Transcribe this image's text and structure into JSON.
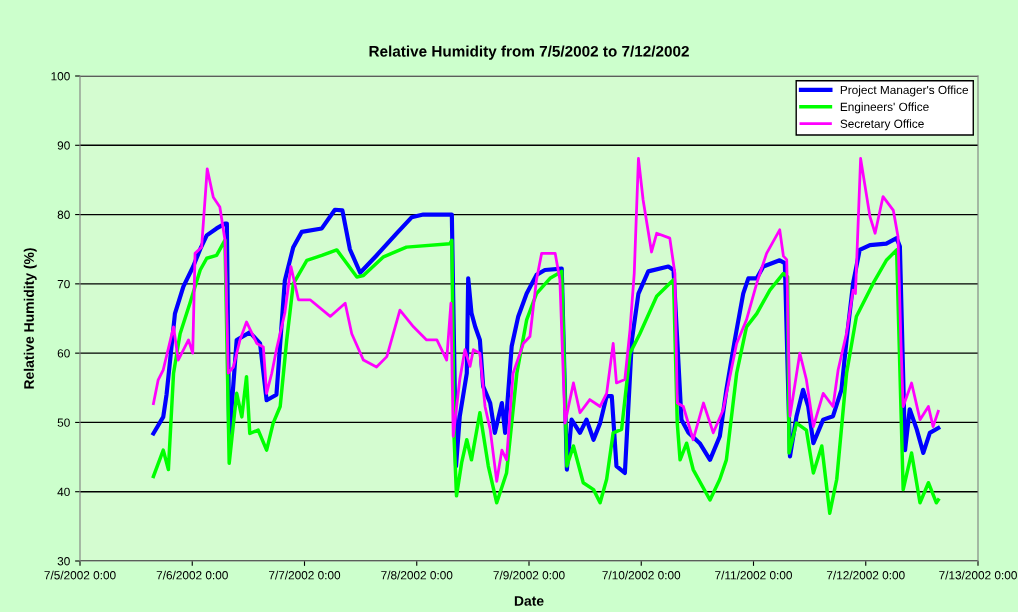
{
  "chart_data": {
    "type": "line",
    "title": "Relative Humidity from 7/5/2002 to 7/12/2002",
    "xlabel": "Date",
    "ylabel": "Relative Humidity (%)",
    "xlim": [
      "2002-07-05T00:00",
      "2002-07-13T00:00"
    ],
    "xticks": [
      {
        "value": "2002-07-05T00:00",
        "label": "7/5/2002 0:00"
      },
      {
        "value": "2002-07-06T00:00",
        "label": "7/6/2002 0:00"
      },
      {
        "value": "2002-07-07T00:00",
        "label": "7/7/2002 0:00"
      },
      {
        "value": "2002-07-08T00:00",
        "label": "7/8/2002 0:00"
      },
      {
        "value": "2002-07-09T00:00",
        "label": "7/9/2002 0:00"
      },
      {
        "value": "2002-07-10T00:00",
        "label": "7/10/2002 0:00"
      },
      {
        "value": "2002-07-11T00:00",
        "label": "7/11/2002 0:00"
      },
      {
        "value": "2002-07-12T00:00",
        "label": "7/12/2002 0:00"
      },
      {
        "value": "2002-07-13T00:00",
        "label": "7/13/2002 0:00"
      }
    ],
    "ylim": [
      30,
      100
    ],
    "yticks": [
      30,
      40,
      50,
      60,
      70,
      80,
      90,
      100
    ],
    "grid": "y",
    "legend": "top right",
    "marker": "none",
    "line_style": "solid",
    "series": [
      {
        "name": "Project Manager's Office",
        "color": "#0000ff",
        "x": [
          "2002-07-05T15:42",
          "2002-07-05T17:48",
          "2002-07-05T18:30",
          "2002-07-05T20:18",
          "2002-07-05T22:06",
          "2002-07-06T00:12",
          "2002-07-06T01:42",
          "2002-07-06T03:06",
          "2002-07-06T05:12",
          "2002-07-06T07:00",
          "2002-07-06T07:24",
          "2002-07-06T07:54",
          "2002-07-06T09:30",
          "2002-07-06T12:18",
          "2002-07-06T14:30",
          "2002-07-06T15:54",
          "2002-07-06T18:00",
          "2002-07-06T19:48",
          "2002-07-06T21:36",
          "2002-07-06T23:24",
          "2002-07-07T03:42",
          "2002-07-07T06:30",
          "2002-07-07T08:06",
          "2002-07-07T09:42",
          "2002-07-07T11:54",
          "2002-07-07T15:24",
          "2002-07-07T19:42",
          "2002-07-07T22:54",
          "2002-07-08T01:24",
          "2002-07-08T07:30",
          "2002-07-08T08:24",
          "2002-07-08T09:12",
          "2002-07-08T10:42",
          "2002-07-08T11:00",
          "2002-07-08T11:42",
          "2002-07-08T12:30",
          "2002-07-08T13:30",
          "2002-07-08T14:12",
          "2002-07-08T15:42",
          "2002-07-08T16:42",
          "2002-07-08T18:12",
          "2002-07-08T18:54",
          "2002-07-08T20:18",
          "2002-07-08T21:42",
          "2002-07-08T23:30",
          "2002-07-09T01:36",
          "2002-07-09T03:24",
          "2002-07-09T07:00",
          "2002-07-09T08:06",
          "2002-07-09T09:06",
          "2002-07-09T10:54",
          "2002-07-09T12:18",
          "2002-07-09T13:48",
          "2002-07-09T15:12",
          "2002-07-09T16:36",
          "2002-07-09T17:42",
          "2002-07-09T18:42",
          "2002-07-09T20:30",
          "2002-07-09T22:00",
          "2002-07-09T23:24",
          "2002-07-10T01:30",
          "2002-07-10T05:48",
          "2002-07-10T06:54",
          "2002-07-10T08:36",
          "2002-07-10T10:06",
          "2002-07-10T12:30",
          "2002-07-10T14:42",
          "2002-07-10T16:48",
          "2002-07-10T18:12",
          "2002-07-10T20:00",
          "2002-07-10T21:48",
          "2002-07-10T22:54",
          "2002-07-11T00:42",
          "2002-07-11T02:06",
          "2002-07-11T05:36",
          "2002-07-11T06:42",
          "2002-07-11T07:48",
          "2002-07-11T09:12",
          "2002-07-11T10:36",
          "2002-07-11T11:42",
          "2002-07-11T12:48",
          "2002-07-11T14:54",
          "2002-07-11T17:00",
          "2002-07-11T18:48",
          "2002-07-11T19:54",
          "2002-07-11T21:18",
          "2002-07-11T22:42",
          "2002-07-12T00:54",
          "2002-07-12T04:24",
          "2002-07-12T06:36",
          "2002-07-12T07:18",
          "2002-07-12T08:24",
          "2002-07-12T09:24",
          "2002-07-12T10:54",
          "2002-07-12T12:18",
          "2002-07-12T13:42",
          "2002-07-12T15:30"
        ],
        "values": [
          48.4,
          50.8,
          54,
          65.7,
          69.6,
          72.5,
          75,
          77,
          78,
          78.7,
          78.7,
          47.5,
          61.9,
          63,
          61.4,
          53.2,
          54,
          70.5,
          75.3,
          77.5,
          78,
          80.7,
          80.6,
          75,
          71.6,
          74.1,
          77.3,
          79.6,
          80,
          80,
          43.7,
          50.9,
          57.1,
          70.8,
          65.8,
          63.8,
          61.9,
          55.2,
          52.8,
          48.5,
          52.8,
          48.5,
          61,
          65.3,
          68.6,
          71.3,
          72,
          72.2,
          43.2,
          50.4,
          48.5,
          50.4,
          47.5,
          49.9,
          53.8,
          53.8,
          43.7,
          42.7,
          61.9,
          68.6,
          71.8,
          72.5,
          72,
          50.4,
          48.5,
          47,
          44.6,
          48,
          54.7,
          61.9,
          68.6,
          70.8,
          70.8,
          72.5,
          73.4,
          73,
          45.1,
          50.9,
          54.7,
          52.3,
          47,
          50.4,
          50.9,
          54.7,
          61.9,
          70.1,
          74.9,
          75.6,
          75.8,
          76.6,
          75.4,
          46,
          51.9,
          49,
          45.6,
          48.5,
          49.2
        ]
      },
      {
        "name": "Engineers' Office",
        "color": "#00ff00",
        "x": [
          "2002-07-05T15:42",
          "2002-07-05T17:48",
          "2002-07-05T18:54",
          "2002-07-05T20:00",
          "2002-07-05T21:24",
          "2002-07-05T23:30",
          "2002-07-06T01:42",
          "2002-07-06T03:06",
          "2002-07-06T05:12",
          "2002-07-06T07:00",
          "2002-07-06T07:54",
          "2002-07-06T09:30",
          "2002-07-06T10:36",
          "2002-07-06T11:36",
          "2002-07-06T12:18",
          "2002-07-06T14:06",
          "2002-07-06T15:54",
          "2002-07-06T17:18",
          "2002-07-06T18:48",
          "2002-07-06T20:12",
          "2002-07-06T21:36",
          "2002-07-07T00:30",
          "2002-07-07T03:42",
          "2002-07-07T06:54",
          "2002-07-07T11:12",
          "2002-07-07T12:36",
          "2002-07-07T16:54",
          "2002-07-07T21:48",
          "2002-07-08T07:06",
          "2002-07-08T07:30",
          "2002-07-08T08:00",
          "2002-07-08T08:30",
          "2002-07-08T09:36",
          "2002-07-08T10:42",
          "2002-07-08T11:42",
          "2002-07-08T13:30",
          "2002-07-08T15:18",
          "2002-07-08T17:06",
          "2002-07-08T19:12",
          "2002-07-08T21:24",
          "2002-07-08T23:30",
          "2002-07-09T01:36",
          "2002-07-09T04:30",
          "2002-07-09T07:00",
          "2002-07-09T08:06",
          "2002-07-09T09:30",
          "2002-07-09T11:36",
          "2002-07-09T13:48",
          "2002-07-09T15:12",
          "2002-07-09T16:36",
          "2002-07-09T18:00",
          "2002-07-09T19:48",
          "2002-07-09T21:36",
          "2002-07-09T23:42",
          "2002-07-10T03:18",
          "2002-07-10T06:54",
          "2002-07-10T07:42",
          "2002-07-10T08:18",
          "2002-07-10T09:42",
          "2002-07-10T11:06",
          "2002-07-10T14:42",
          "2002-07-10T16:48",
          "2002-07-10T18:12",
          "2002-07-10T20:24",
          "2002-07-10T22:30",
          "2002-07-11T00:42",
          "2002-07-11T03:30",
          "2002-07-11T06:24",
          "2002-07-11T07:18",
          "2002-07-11T07:36",
          "2002-07-11T09:12",
          "2002-07-11T11:18",
          "2002-07-11T12:48",
          "2002-07-11T14:36",
          "2002-07-11T16:18",
          "2002-07-11T17:48",
          "2002-07-11T19:54",
          "2002-07-11T22:00",
          "2002-07-12T01:36",
          "2002-07-12T04:24",
          "2002-07-12T06:36",
          "2002-07-12T08:00",
          "2002-07-12T09:48",
          "2002-07-12T11:36",
          "2002-07-12T13:24",
          "2002-07-12T15:06",
          "2002-07-12T15:30"
        ],
        "values": [
          42.2,
          46,
          43.2,
          57.1,
          62.8,
          67.2,
          72,
          73.7,
          74.1,
          76.3,
          44.1,
          54.2,
          50.8,
          56.6,
          48.4,
          48.9,
          46,
          49.9,
          52.3,
          61.9,
          70,
          73.4,
          74.1,
          74.9,
          71,
          71.2,
          73.9,
          75.3,
          75.8,
          76.3,
          47.5,
          39.4,
          44.2,
          47.5,
          44.6,
          51.4,
          43.7,
          38.4,
          42.7,
          57.1,
          64.8,
          68.6,
          70.8,
          71.8,
          43.7,
          46.6,
          41.3,
          40.3,
          38.4,
          41.8,
          48.5,
          49,
          60,
          62.8,
          68.2,
          70.6,
          49.9,
          44.6,
          47,
          43.2,
          38.8,
          41.8,
          44.6,
          57.1,
          63.8,
          65.7,
          69.1,
          71.5,
          71,
          45.6,
          49.9,
          48.9,
          42.7,
          46.6,
          36.9,
          41.8,
          57.1,
          65.3,
          70.1,
          73.4,
          74.9,
          40.3,
          45.6,
          38.4,
          41.3,
          38.4,
          38.8
        ]
      },
      {
        "name": "Secretary Office",
        "color": "#ff00ff",
        "x": [
          "2002-07-05T15:42",
          "2002-07-05T16:42",
          "2002-07-05T17:48",
          "2002-07-05T20:00",
          "2002-07-05T21:00",
          "2002-07-05T23:12",
          "2002-07-06T00:06",
          "2002-07-06T00:36",
          "2002-07-06T02:00",
          "2002-07-06T03:12",
          "2002-07-06T04:30",
          "2002-07-06T05:54",
          "2002-07-06T07:00",
          "2002-07-06T07:42",
          "2002-07-06T08:48",
          "2002-07-06T10:12",
          "2002-07-06T11:36",
          "2002-07-06T13:48",
          "2002-07-06T15:12",
          "2002-07-06T15:54",
          "2002-07-06T17:00",
          "2002-07-06T18:00",
          "2002-07-06T19:48",
          "2002-07-06T21:06",
          "2002-07-06T22:42",
          "2002-07-07T01:12",
          "2002-07-07T05:30",
          "2002-07-07T08:42",
          "2002-07-07T10:06",
          "2002-07-07T12:36",
          "2002-07-07T15:24",
          "2002-07-07T17:36",
          "2002-07-07T20:24",
          "2002-07-07T23:18",
          "2002-07-08T02:06",
          "2002-07-08T04:18",
          "2002-07-08T06:24",
          "2002-07-08T07:18",
          "2002-07-08T07:48",
          "2002-07-08T09:12",
          "2002-07-08T10:18",
          "2002-07-08T11:24",
          "2002-07-08T12:06",
          "2002-07-08T13:30",
          "2002-07-08T14:36",
          "2002-07-08T15:42",
          "2002-07-08T17:06",
          "2002-07-08T18:12",
          "2002-07-08T19:12",
          "2002-07-08T20:36",
          "2002-07-08T22:48",
          "2002-07-09T00:12",
          "2002-07-09T01:36",
          "2002-07-09T02:42",
          "2002-07-09T05:36",
          "2002-07-09T06:36",
          "2002-07-09T07:42",
          "2002-07-09T09:30",
          "2002-07-09T10:54",
          "2002-07-09T13:00",
          "2002-07-09T15:12",
          "2002-07-09T16:36",
          "2002-07-09T18:00",
          "2002-07-09T18:42",
          "2002-07-09T20:30",
          "2002-07-09T21:36",
          "2002-07-09T22:30",
          "2002-07-09T23:24",
          "2002-07-10T00:24",
          "2002-07-10T02:12",
          "2002-07-10T03:18",
          "2002-07-10T06:06",
          "2002-07-10T07:12",
          "2002-07-10T07:42",
          "2002-07-10T09:00",
          "2002-07-10T11:06",
          "2002-07-10T13:18",
          "2002-07-10T15:24",
          "2002-07-10T17:30",
          "2002-07-10T20:24",
          "2002-07-10T22:30",
          "2002-07-11T00:42",
          "2002-07-11T02:48",
          "2002-07-11T05:36",
          "2002-07-11T06:24",
          "2002-07-11T07:06",
          "2002-07-11T07:48",
          "2002-07-11T09:54",
          "2002-07-11T11:18",
          "2002-07-11T12:48",
          "2002-07-11T14:54",
          "2002-07-11T17:00",
          "2002-07-11T18:06",
          "2002-07-11T19:54",
          "2002-07-11T21:18",
          "2002-07-11T21:48",
          "2002-07-11T22:54",
          "2002-07-12T00:54",
          "2002-07-12T02:00",
          "2002-07-12T03:42",
          "2002-07-12T05:54",
          "2002-07-12T06:54",
          "2002-07-12T07:30",
          "2002-07-12T08:00",
          "2002-07-12T09:48",
          "2002-07-12T11:36",
          "2002-07-12T13:24",
          "2002-07-12T14:24",
          "2002-07-12T15:30"
        ],
        "values": [
          52.7,
          56.1,
          57.6,
          63.8,
          59,
          61.9,
          60,
          74.4,
          75.3,
          86.6,
          82.5,
          81.1,
          76.3,
          57.1,
          58,
          61.9,
          64.5,
          61.4,
          60.9,
          54.2,
          57.1,
          60.5,
          65.8,
          72.5,
          67.7,
          67.7,
          65.3,
          67.2,
          62.8,
          59,
          58,
          59.5,
          66.2,
          63.8,
          61.9,
          61.9,
          59,
          67.2,
          48,
          56.2,
          60.5,
          58.1,
          60.5,
          60,
          52.3,
          49,
          41.5,
          46,
          44.6,
          57.1,
          61.4,
          62.4,
          70.6,
          74.4,
          74.4,
          70.6,
          49.9,
          55.7,
          51.4,
          53.3,
          52.3,
          54.2,
          61.4,
          55.7,
          56.2,
          63.4,
          71.5,
          88.1,
          82.1,
          74.6,
          77.3,
          76.6,
          71.5,
          52.8,
          52.3,
          47.5,
          52.8,
          48.5,
          51.8,
          61.4,
          64.8,
          70.1,
          74.4,
          77.8,
          74,
          73.5,
          50.9,
          60,
          56.2,
          49.4,
          54.2,
          52.3,
          57.6,
          62.9,
          69.1,
          68.6,
          88.1,
          79.7,
          77.3,
          82.6,
          80.6,
          76.8,
          62,
          52.3,
          55.7,
          50.4,
          52.3,
          49.4,
          51.6
        ]
      }
    ]
  }
}
